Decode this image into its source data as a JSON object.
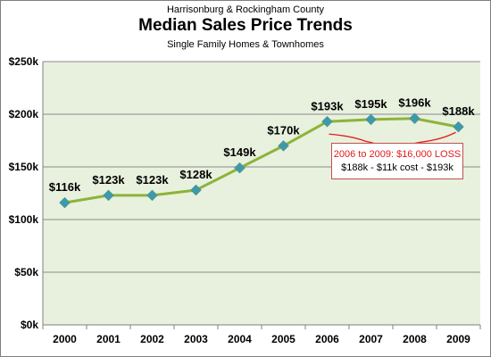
{
  "header": {
    "supertitle": "Harrisonburg & Rockingham County",
    "title": "Median Sales Price Trends",
    "subtitle": "Single Family Homes & Townhomes"
  },
  "colors": {
    "plot_background": "#e8f1de",
    "line": "#8db33a",
    "marker": "#3e9aa6",
    "gridline": "#8c8c8c",
    "annotation_red": "#e31b1b",
    "annotation_border": "#c0504d"
  },
  "chart_data": {
    "type": "line",
    "title": "Median Sales Price Trends",
    "categories": [
      "2000",
      "2001",
      "2002",
      "2003",
      "2004",
      "2005",
      "2006",
      "2007",
      "2008",
      "2009"
    ],
    "series": [
      {
        "values": [
          116,
          123,
          123,
          128,
          149,
          170,
          193,
          195,
          196,
          188
        ],
        "data_labels": [
          "$116k",
          "$123k",
          "$123k",
          "$128k",
          "$149k",
          "$170k",
          "$193k",
          "$195k",
          "$196k",
          "$188k"
        ]
      }
    ],
    "ylim": [
      0,
      250
    ],
    "y_ticks": [
      0,
      50,
      100,
      150,
      200,
      250
    ],
    "y_tick_labels": [
      "$0k",
      "$50k",
      "$100k",
      "$150k",
      "$200k",
      "$250k"
    ],
    "grid": "horizontal",
    "legend": "none",
    "annotation": {
      "line1": "2006 to 2009:  $16,000 LOSS",
      "line2": "$188k - $11k cost - $193k"
    }
  }
}
